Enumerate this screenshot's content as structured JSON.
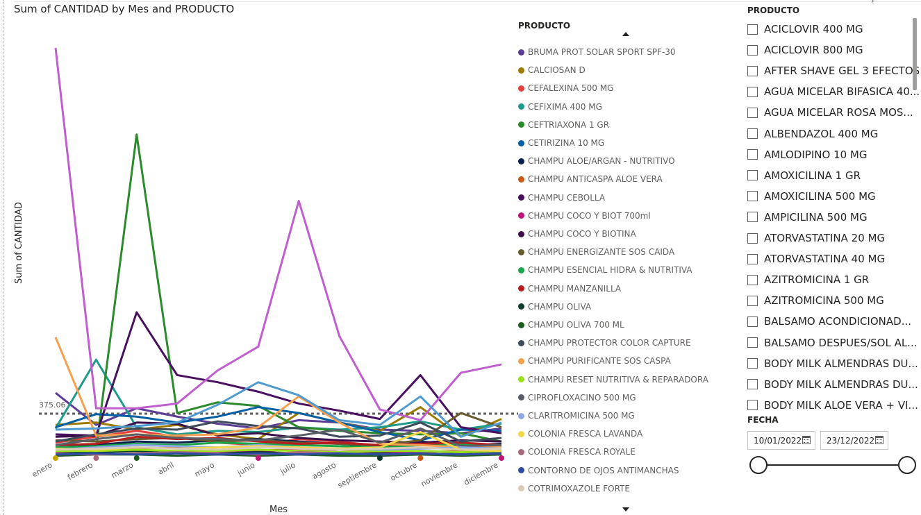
{
  "chart_data": {
    "type": "line",
    "title": "Sum of CANTIDAD by Mes and PRODUCTO",
    "xlabel": "Mes",
    "ylabel": "Sum of CANTIDAD",
    "categories": [
      "enero",
      "febrero",
      "marzo",
      "abril",
      "mayo",
      "junio",
      "julio",
      "agosto",
      "septiembre",
      "octubre",
      "noviembre",
      "diciembre"
    ],
    "ylim": [
      0,
      3560
    ],
    "reference_line": {
      "label": "375.06",
      "value": 375.06
    },
    "series": [
      {
        "name": "BRUMA PROT SOLAR SPORT SPF-30",
        "color": "#5b3d96",
        "values": [
          550,
          280,
          420,
          350,
          290,
          250,
          320,
          300,
          240,
          230,
          210,
          250
        ]
      },
      {
        "name": "CALCIOSAN D",
        "color": "#9c7a00",
        "values": [
          280,
          300,
          240,
          280,
          200,
          160,
          380,
          300,
          230,
          430,
          180,
          330
        ]
      },
      {
        "name": "CEFALEXINA 500 MG",
        "color": "#e8403f",
        "values": [
          130,
          180,
          230,
          180,
          130,
          110,
          160,
          140,
          100,
          110,
          120,
          100
        ]
      },
      {
        "name": "CEFIXIMA 400 MG",
        "color": "#1d9a8a",
        "values": [
          250,
          830,
          260,
          200,
          230,
          220,
          260,
          240,
          260,
          310,
          240,
          290
        ]
      },
      {
        "name": "CEFTRIAXONA 1 GR",
        "color": "#2b8a2b",
        "values": [
          60,
          80,
          2730,
          380,
          470,
          440,
          260,
          230,
          210,
          200,
          210,
          140
        ]
      },
      {
        "name": "CETIRIZINA 10 MG",
        "color": "#005fa5",
        "values": [
          260,
          370,
          350,
          300,
          350,
          430,
          380,
          300,
          220,
          150,
          240,
          230
        ]
      },
      {
        "name": "CHAMPU ALOE/ARGAN - NUTRITIVO",
        "color": "#0a2150",
        "values": [
          90,
          110,
          140,
          130,
          150,
          160,
          140,
          120,
          100,
          140,
          110,
          120
        ]
      },
      {
        "name": "CHAMPU ANTICASPA ALOE VERA",
        "color": "#c95b16",
        "values": [
          60,
          70,
          80,
          90,
          70,
          60,
          80,
          70,
          60,
          50,
          60,
          70
        ]
      },
      {
        "name": "CHAMPU CEBOLLA",
        "color": "#4a1060",
        "values": [
          200,
          190,
          1230,
          700,
          640,
          560,
          460,
          400,
          330,
          700,
          260,
          210
        ]
      },
      {
        "name": "CHAMPU COCO Y BIOT 700ml",
        "color": "#c0137a",
        "values": [
          50,
          60,
          70,
          40,
          50,
          60,
          70,
          50,
          40,
          60,
          50,
          40
        ]
      },
      {
        "name": "CHAMPU COCO Y BIOTINA",
        "color": "#3a0f4a",
        "values": [
          180,
          190,
          300,
          290,
          190,
          210,
          170,
          150,
          140,
          130,
          150,
          140
        ]
      },
      {
        "name": "CHAMPU ENERGIZANTE SOS CAIDA",
        "color": "#6a5a30",
        "values": [
          150,
          140,
          160,
          170,
          140,
          150,
          130,
          120,
          110,
          150,
          380,
          260
        ]
      },
      {
        "name": "CHAMPU ESENCIAL HIDRA & NUTRITIVA",
        "color": "#1aa54a",
        "values": [
          90,
          100,
          120,
          110,
          130,
          120,
          110,
          100,
          90,
          110,
          120,
          100
        ]
      },
      {
        "name": "CHAMPU MANZANILLA",
        "color": "#b81d1d",
        "values": [
          110,
          120,
          180,
          160,
          170,
          140,
          120,
          130,
          110,
          120,
          130,
          110
        ]
      },
      {
        "name": "CHAMPU OLIVA",
        "color": "#0e3b30",
        "values": [
          40,
          50,
          60,
          50,
          40,
          50,
          40,
          30,
          40,
          30,
          40,
          50
        ]
      },
      {
        "name": "CHAMPU OLIVA 700 ML",
        "color": "#1c5e20",
        "values": [
          20,
          30,
          30,
          20,
          30,
          20,
          30,
          20,
          20,
          30,
          20,
          30
        ]
      },
      {
        "name": "CHAMPU PROTECTOR COLOR CAPTURE",
        "color": "#3e4a5a",
        "values": [
          140,
          200,
          250,
          240,
          310,
          270,
          250,
          180,
          190,
          300,
          140,
          170
        ]
      },
      {
        "name": "CHAMPU PURIFICANTE SOS CASPA",
        "color": "#f5a04e",
        "values": [
          1020,
          190,
          200,
          190,
          200,
          260,
          520,
          300,
          120,
          110,
          90,
          100
        ]
      },
      {
        "name": "CHAMPU RESET NUTRITIVA & REPARADORA",
        "color": "#9adf1c",
        "values": [
          60,
          60,
          70,
          60,
          60,
          70,
          60,
          50,
          60,
          60,
          50,
          60
        ]
      },
      {
        "name": "CIPROFLOXACINO 500 MG",
        "color": "#5a5e66",
        "values": [
          110,
          160,
          200,
          170,
          160,
          150,
          190,
          240,
          130,
          250,
          100,
          110
        ]
      },
      {
        "name": "CLARITROMICINA 500 MG",
        "color": "#8ea8e4",
        "values": [
          70,
          90,
          110,
          100,
          90,
          110,
          90,
          80,
          70,
          80,
          90,
          80
        ]
      },
      {
        "name": "COLONIA FRESCA LAVANDA",
        "color": "#f2d64b",
        "values": [
          80,
          70,
          90,
          80,
          90,
          100,
          90,
          80,
          90,
          220,
          70,
          60
        ]
      },
      {
        "name": "COLONIA FRESCA ROYALE",
        "color": "#a86a7b",
        "values": [
          40,
          30,
          40,
          50,
          40,
          30,
          50,
          40,
          30,
          40,
          30,
          40
        ]
      },
      {
        "name": "CONTORNO DE OJOS ANTIMANCHAS",
        "color": "#2e4ca5",
        "values": [
          30,
          40,
          30,
          40,
          30,
          40,
          30,
          40,
          30,
          40,
          30,
          40
        ]
      },
      {
        "name": "COTRIMOXAZOLE FORTE",
        "color": "#d8cbb7",
        "values": [
          70,
          80,
          90,
          80,
          70,
          90,
          80,
          70,
          80,
          90,
          70,
          80
        ]
      },
      {
        "name": "",
        "color": "#c05ed0",
        "values": [
          3460,
          420,
          420,
          460,
          740,
          940,
          2170,
          1030,
          410,
          320,
          720,
          790
        ]
      },
      {
        "name": "",
        "color": "#4f9bd1",
        "values": [
          240,
          250,
          270,
          300,
          450,
          640,
          530,
          320,
          280,
          520,
          180,
          300
        ]
      }
    ]
  },
  "legend": {
    "title": "PRODUCTO",
    "items": [
      {
        "label": "BRUMA PROT SOLAR SPORT SPF-30",
        "color": "#5b3d96"
      },
      {
        "label": "CALCIOSAN D",
        "color": "#9c7a00"
      },
      {
        "label": "CEFALEXINA 500 MG",
        "color": "#e8403f"
      },
      {
        "label": "CEFIXIMA 400 MG",
        "color": "#1d9a8a"
      },
      {
        "label": "CEFTRIAXONA 1 GR",
        "color": "#2b8a2b"
      },
      {
        "label": "CETIRIZINA 10 MG",
        "color": "#005fa5"
      },
      {
        "label": "CHAMPU ALOE/ARGAN - NUTRITIVO",
        "color": "#0a2150"
      },
      {
        "label": "CHAMPU ANTICASPA ALOE VERA",
        "color": "#c95b16"
      },
      {
        "label": "CHAMPU CEBOLLA",
        "color": "#4a1060"
      },
      {
        "label": "CHAMPU COCO Y BIOT 700ml",
        "color": "#c0137a"
      },
      {
        "label": "CHAMPU COCO Y BIOTINA",
        "color": "#3a0f4a"
      },
      {
        "label": "CHAMPU ENERGIZANTE SOS CAIDA",
        "color": "#6a5a30"
      },
      {
        "label": "CHAMPU ESENCIAL HIDRA & NUTRITIVA",
        "color": "#1aa54a"
      },
      {
        "label": "CHAMPU MANZANILLA",
        "color": "#b81d1d"
      },
      {
        "label": "CHAMPU OLIVA",
        "color": "#0e3b30"
      },
      {
        "label": "CHAMPU OLIVA 700 ML",
        "color": "#1c5e20"
      },
      {
        "label": "CHAMPU PROTECTOR COLOR CAPTURE",
        "color": "#3e4a5a"
      },
      {
        "label": "CHAMPU PURIFICANTE SOS CASPA",
        "color": "#f5a04e"
      },
      {
        "label": "CHAMPU RESET NUTRITIVA & REPARADORA",
        "color": "#9adf1c"
      },
      {
        "label": "CIPROFLOXACINO 500 MG",
        "color": "#5a5e66"
      },
      {
        "label": "CLARITROMICINA 500 MG",
        "color": "#8ea8e4"
      },
      {
        "label": "COLONIA FRESCA LAVANDA",
        "color": "#f2d64b"
      },
      {
        "label": "COLONIA FRESCA ROYALE",
        "color": "#a86a7b"
      },
      {
        "label": "CONTORNO DE OJOS ANTIMANCHAS",
        "color": "#2e4ca5"
      },
      {
        "label": "COTRIMOXAZOLE FORTE",
        "color": "#d8cbb7"
      }
    ]
  },
  "slicer": {
    "title": "PRODUCTO",
    "items": [
      "ACICLOVIR 400 MG",
      "ACICLOVIR 800 MG",
      "AFTER SHAVE GEL 3 EFECTOS",
      "AGUA MICELAR BIFASICA 40...",
      "AGUA MICELAR ROSA MOS...",
      "ALBENDAZOL 400 MG",
      "AMLODIPINO 10 MG",
      "AMOXICILINA 1 GR",
      "AMOXICILINA 500 MG",
      "AMPICILINA 500 MG",
      "ATORVASTATINA 20 MG",
      "ATORVASTATINA 40 MG",
      "AZITROMICINA 1 GR",
      "AZITROMICINA 500 MG",
      "BALSAMO ACONDICIONAD...",
      "BALSAMO DESPUES/SOL AL...",
      "BODY MILK ALMENDRAS DU...",
      "BODY MILK ALMENDRAS DU...",
      "BODY MILK ALOE VERA + VI..."
    ]
  },
  "fecha": {
    "title": "FECHA",
    "start": "10/01/2022",
    "end": "23/12/2022",
    "range": [
      0,
      1
    ]
  }
}
